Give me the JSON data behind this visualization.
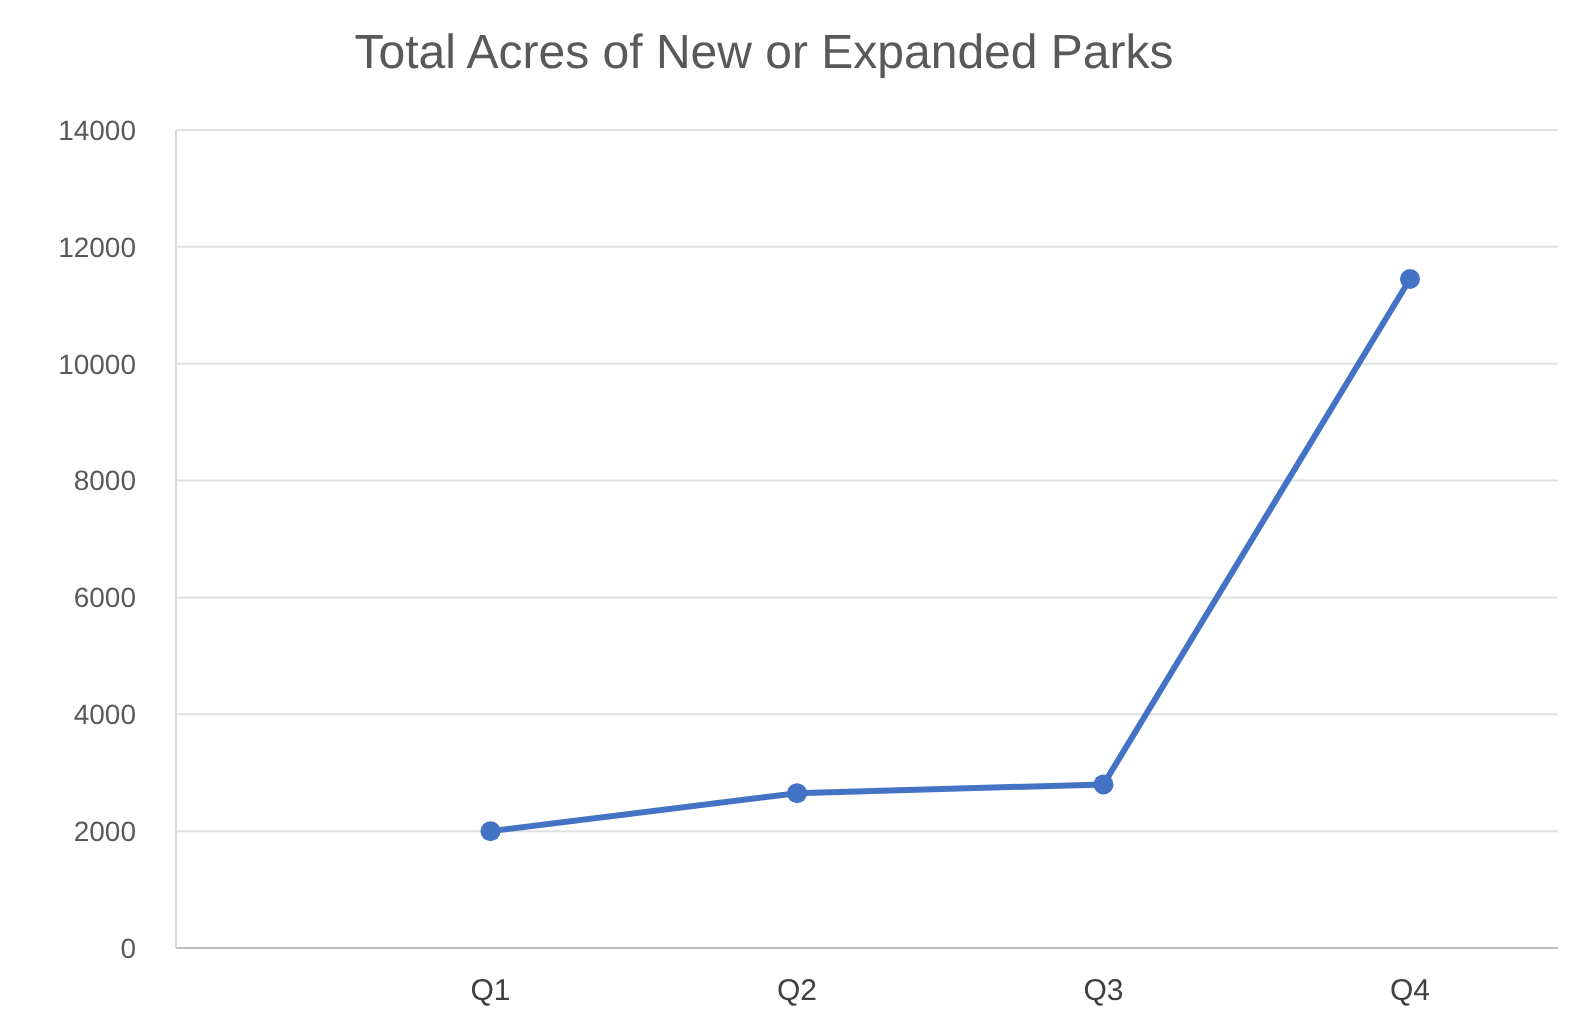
{
  "chart_data": {
    "type": "line",
    "title": "Total Acres of New or Expanded Parks",
    "categories": [
      null,
      "Q1",
      "Q2",
      "Q3",
      "Q4"
    ],
    "values": [
      null,
      2000,
      2650,
      2800,
      11450
    ],
    "color": "#4472c4",
    "marker": "circle",
    "line_style": "solid",
    "ylim": [
      0,
      14000
    ],
    "yticks": [
      0,
      2000,
      4000,
      6000,
      8000,
      10000,
      12000,
      14000
    ],
    "grid": "y"
  }
}
